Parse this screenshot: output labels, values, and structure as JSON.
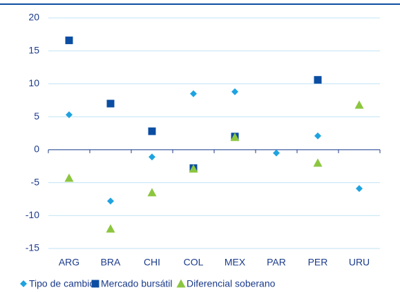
{
  "chart_data": {
    "type": "scatter",
    "categories": [
      "ARG",
      "BRA",
      "CHI",
      "COL",
      "MEX",
      "PAR",
      "PER",
      "URU"
    ],
    "series": [
      {
        "name": "Tipo de cambio",
        "color": "#1fa3e0",
        "marker": "diamond",
        "values": [
          5.3,
          -7.8,
          -1.1,
          8.5,
          8.8,
          -0.5,
          2.1,
          -5.9
        ]
      },
      {
        "name": "Mercado bursátil",
        "color": "#0b4da2",
        "marker": "square",
        "values": [
          16.6,
          7.0,
          2.8,
          -2.8,
          2.0,
          null,
          10.6,
          null
        ]
      },
      {
        "name": "Diferencial soberano",
        "color": "#8cc63f",
        "marker": "triangle",
        "values": [
          -4.3,
          -12.0,
          -6.5,
          -2.9,
          1.9,
          null,
          -2.0,
          6.8
        ]
      }
    ],
    "ylim": [
      -15,
      20
    ],
    "yticks": [
      -15,
      -10,
      -5,
      0,
      5,
      10,
      15,
      20
    ],
    "grid": true,
    "legend": "bottom"
  }
}
